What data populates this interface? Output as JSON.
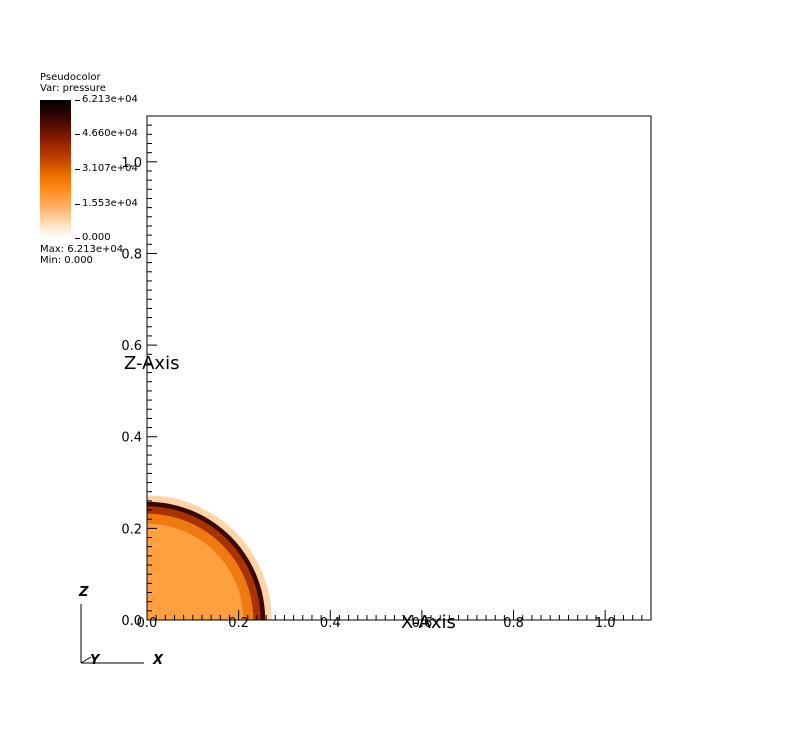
{
  "legend": {
    "title": "Pseudocolor",
    "var": "Var: pressure",
    "ticks": [
      "6.213e+04",
      "4.660e+04",
      "3.107e+04",
      "1.553e+04",
      "0.000"
    ],
    "max": "Max:  6.213e+04",
    "min": "Min:  0.000"
  },
  "axes": {
    "x_title": "X-Axis",
    "z_title": "Z-Axis",
    "x_ticks": [
      "0.0",
      "0.2",
      "0.4",
      "0.6",
      "0.8",
      "1.0"
    ],
    "z_ticks": [
      "0.0",
      "0.2",
      "0.4",
      "0.6",
      "0.8",
      "1.0"
    ],
    "xlim": [
      0,
      1.1
    ],
    "zlim": [
      0,
      1.1
    ]
  },
  "triad": {
    "z": "Z",
    "y": "Y",
    "x": "X"
  },
  "colors": {
    "dark": "#3a0800",
    "mid": "#a83200",
    "orange": "#ee7a10",
    "light": "#ffa040",
    "pale": "#ffd4a8"
  }
}
